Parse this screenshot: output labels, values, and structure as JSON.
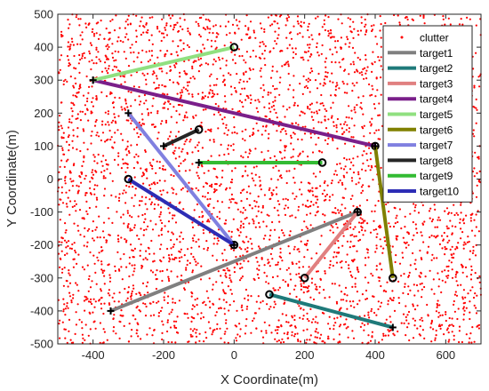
{
  "chart_data": {
    "type": "scatter",
    "title": "",
    "xlabel": "X Coordinate(m)",
    "ylabel": "Y Coordinate(m)",
    "xlim": [
      -500,
      700
    ],
    "ylim": [
      -500,
      500
    ],
    "xticks": [
      -400,
      -200,
      0,
      200,
      400,
      600
    ],
    "yticks": [
      -500,
      -400,
      -300,
      -200,
      -100,
      0,
      100,
      200,
      300,
      400,
      500
    ],
    "grid": false,
    "legend_position": "top-right",
    "clutter": {
      "name": "clutter",
      "color": "#ff0000",
      "count": 4000,
      "distribution": "uniform",
      "x_range": [
        -500,
        700
      ],
      "y_range": [
        -500,
        500
      ]
    },
    "tracks": [
      {
        "name": "target1",
        "color": "#808080",
        "start": [
          -350,
          -400
        ],
        "end": [
          350,
          -100
        ]
      },
      {
        "name": "target2",
        "color": "#1f7a7a",
        "start": [
          450,
          -450
        ],
        "end": [
          100,
          -350
        ]
      },
      {
        "name": "target3",
        "color": "#e08080",
        "start": [
          350,
          -100
        ],
        "end": [
          200,
          -300
        ]
      },
      {
        "name": "target4",
        "color": "#7a1f8a",
        "start": [
          -400,
          300
        ],
        "end": [
          400,
          100
        ]
      },
      {
        "name": "target5",
        "color": "#90e080",
        "start": [
          -400,
          300
        ],
        "end": [
          0,
          400
        ]
      },
      {
        "name": "target6",
        "color": "#808000",
        "start": [
          400,
          100
        ],
        "end": [
          450,
          -300
        ]
      },
      {
        "name": "target7",
        "color": "#8080e0",
        "start": [
          -300,
          200
        ],
        "end": [
          0,
          -200
        ]
      },
      {
        "name": "target8",
        "color": "#262626",
        "start": [
          -200,
          100
        ],
        "end": [
          -100,
          150
        ]
      },
      {
        "name": "target9",
        "color": "#33bb33",
        "start": [
          -100,
          50
        ],
        "end": [
          250,
          50
        ]
      },
      {
        "name": "target10",
        "color": "#2d2db5",
        "start": [
          0,
          -200
        ],
        "end": [
          -300,
          0
        ]
      }
    ]
  }
}
